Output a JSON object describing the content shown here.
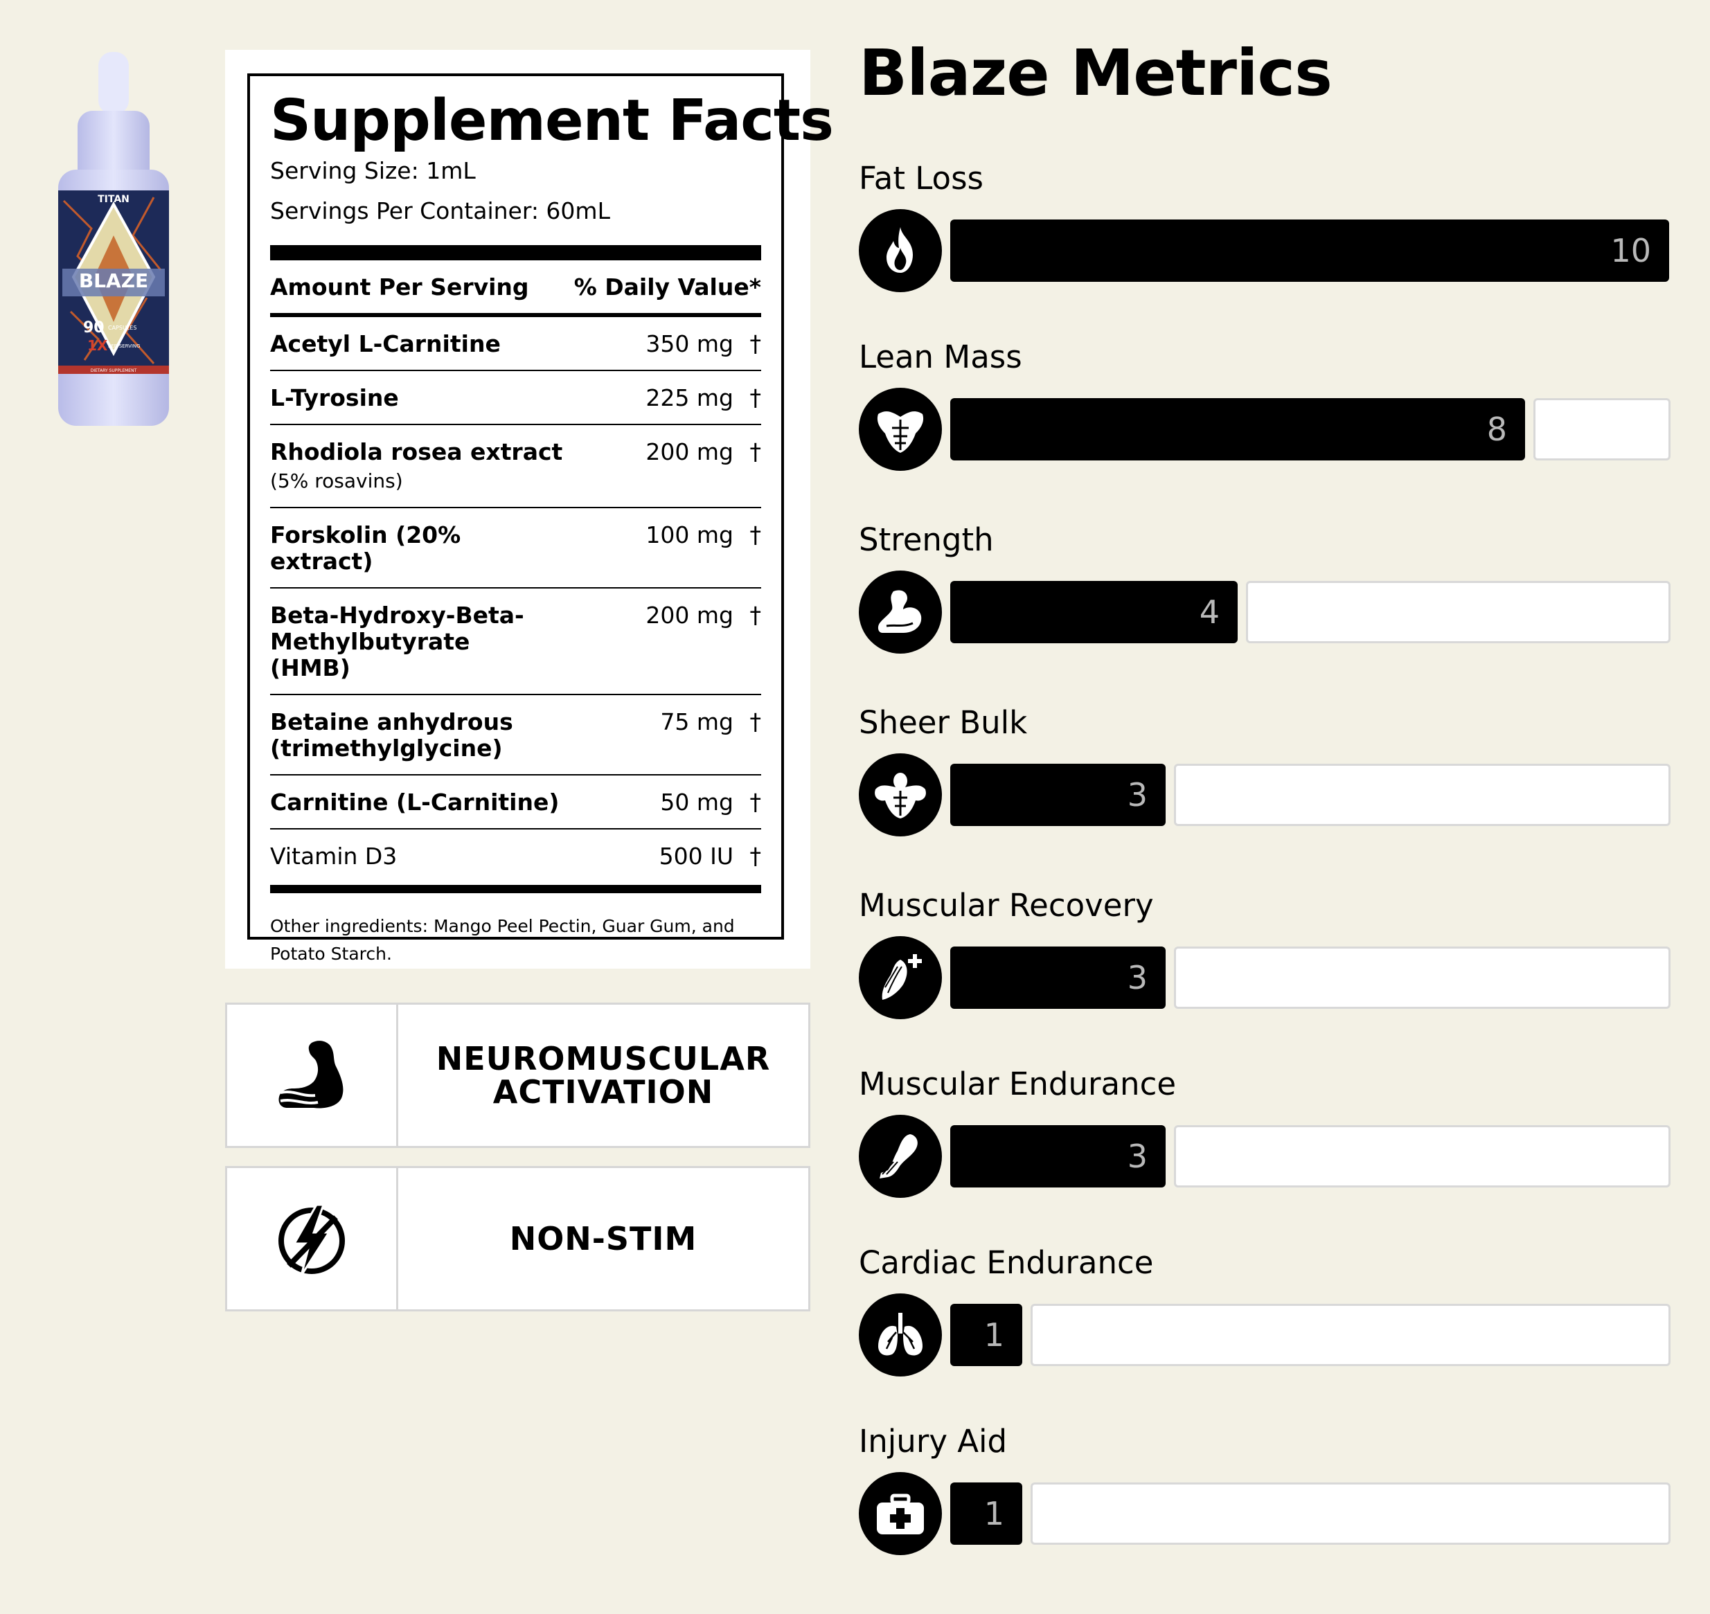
{
  "product": {
    "brand": "TITAN",
    "name": "BLAZE",
    "count": "90",
    "count_unit": "CAPSULES",
    "dose": "1X",
    "dose_unit": "PER SERVING",
    "category": "DIETARY SUPPLEMENT"
  },
  "supplement_facts": {
    "title": "Supplement Facts",
    "serving_size": "Serving Size: 1mL",
    "servings_per_container": "Servings Per Container: 60mL",
    "amount_header": "Amount Per Serving",
    "dv_header": "% Daily Value*",
    "ingredients": [
      {
        "name": "Acetyl L-Carnitine",
        "sub": "",
        "amount": "350 mg",
        "dv": "†"
      },
      {
        "name": "L-Tyrosine",
        "sub": "",
        "amount": "225 mg",
        "dv": "†"
      },
      {
        "name": "Rhodiola rosea extract",
        "sub": "(5% rosavins)",
        "amount": "200 mg",
        "dv": "†"
      },
      {
        "name": "Forskolin (20% extract)",
        "sub": "",
        "amount": "100 mg",
        "dv": "†"
      },
      {
        "name": "Beta-Hydroxy-Beta-Methylbutyrate (HMB)",
        "sub": "",
        "amount": "200 mg",
        "dv": "†"
      },
      {
        "name": "Betaine anhydrous (trimethylglycine)",
        "sub": "",
        "amount": "75 mg",
        "dv": "†"
      },
      {
        "name": "Carnitine (L-Carnitine)",
        "sub": "",
        "amount": "50 mg",
        "dv": "†"
      },
      {
        "name": "Vitamin D3",
        "sub": "",
        "amount": "500 IU",
        "dv": "†"
      }
    ],
    "other_ingredients": "Other ingredients: Mango Peel Pectin, Guar Gum, and Potato Starch."
  },
  "features": [
    {
      "label": "NEUROMUSCULAR\nACTIVATION",
      "icon": "flexed-arm-icon"
    },
    {
      "label": "NON-STIM",
      "icon": "no-lightning-icon"
    }
  ],
  "metrics": {
    "title": "Blaze Metrics",
    "scale_max": 10,
    "items": [
      {
        "label": "Fat Loss",
        "value": 10,
        "icon": "flame-icon"
      },
      {
        "label": "Lean Mass",
        "value": 8,
        "icon": "torso-icon"
      },
      {
        "label": "Strength",
        "value": 4,
        "icon": "bicep-icon"
      },
      {
        "label": "Sheer Bulk",
        "value": 3,
        "icon": "bodybuilder-icon"
      },
      {
        "label": "Muscular Recovery",
        "value": 3,
        "icon": "muscle-recovery-icon"
      },
      {
        "label": "Muscular Endurance",
        "value": 3,
        "icon": "running-leg-icon"
      },
      {
        "label": "Cardiac Endurance",
        "value": 1,
        "icon": "lungs-icon"
      },
      {
        "label": "Injury Aid",
        "value": 1,
        "icon": "first-aid-kit-icon"
      }
    ]
  },
  "colors": {
    "background": "#f3f1e5",
    "bar_fill": "#000000",
    "bar_empty": "#ffffff",
    "bar_value_text": "#b9b9b9"
  }
}
